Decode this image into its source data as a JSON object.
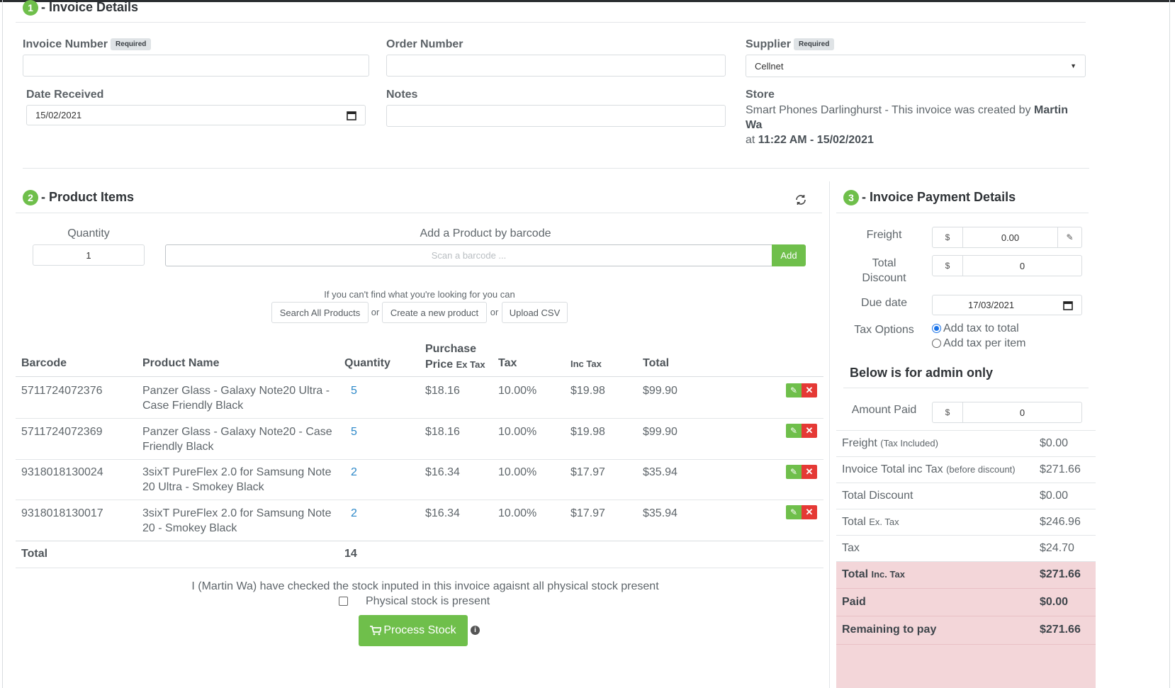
{
  "invoice_details": {
    "number": "1",
    "title": "- Invoice Details",
    "invoice_number": {
      "label": "Invoice Number",
      "badge": "Required",
      "value": ""
    },
    "order_number": {
      "label": "Order Number",
      "value": ""
    },
    "supplier": {
      "label": "Supplier",
      "badge": "Required",
      "value": "Cellnet"
    },
    "date_received": {
      "label": "Date Received",
      "value": "15/02/2021"
    },
    "notes": {
      "label": "Notes",
      "value": ""
    },
    "store": {
      "label": "Store",
      "text_pre": "Smart Phones Darlinghurst - This invoice was created by ",
      "creator": "Martin Wa",
      "text_at": "at ",
      "created": "11:22 AM - 15/02/2021"
    }
  },
  "product_items": {
    "number": "2",
    "title": "- Product Items",
    "refresh_icon": "refresh-icon",
    "quantity_label": "Quantity",
    "quantity_value": "1",
    "barcode_label": "Add a Product by barcode",
    "barcode_placeholder": "Scan a barcode ...",
    "add_button": "Add",
    "hint": "If you can't find what you're looking for you can",
    "search_all": "Search All Products",
    "or": "or",
    "create_new": "Create a new product",
    "upload_csv": "Upload CSV",
    "columns": {
      "barcode": "Barcode",
      "product_name": "Product Name",
      "quantity": "Quantity",
      "purchase_top": "Purchase",
      "purchase_price": "Price",
      "purchase_ex": "Ex Tax",
      "tax": "Tax",
      "inc_tax": "Inc Tax",
      "total": "Total"
    },
    "rows": [
      {
        "barcode": "5711724072376",
        "name_1": "Panzer Glass - Galaxy Note20 Ultra -",
        "name_2": "Case Friendly Black",
        "quantity": "5",
        "price": "$18.16",
        "tax": "10.00%",
        "inc_tax": "$19.98",
        "total": "$99.90"
      },
      {
        "barcode": "5711724072369",
        "name_1": "Panzer Glass - Galaxy Note20 - Case",
        "name_2": "Friendly Black",
        "quantity": "5",
        "price": "$18.16",
        "tax": "10.00%",
        "inc_tax": "$19.98",
        "total": "$99.90"
      },
      {
        "barcode": "9318018130024",
        "name_1": "3sixT PureFlex 2.0 for Samsung Note",
        "name_2": "20 Ultra - Smokey Black",
        "quantity": "2",
        "price": "$16.34",
        "tax": "10.00%",
        "inc_tax": "$17.97",
        "total": "$35.94"
      },
      {
        "barcode": "9318018130017",
        "name_1": "3sixT PureFlex 2.0 for Samsung Note",
        "name_2": "20 - Smokey Black",
        "quantity": "2",
        "price": "$16.34",
        "tax": "10.00%",
        "inc_tax": "$17.97",
        "total": "$35.94"
      }
    ],
    "total_label": "Total",
    "total_quantity": "14",
    "check_statement": "I (Martin Wa) have checked the stock inputed in this invoice agaisnt all physical stock present",
    "check_label": "Physical stock is present",
    "process_button": "Process Stock",
    "info_icon": "info-icon"
  },
  "payment": {
    "number": "3",
    "title": "- Invoice Payment Details",
    "freight": {
      "label": "Freight",
      "prefix": "$",
      "value": "0.00"
    },
    "total_discount": {
      "label_1": "Total",
      "label_2": "Discount",
      "prefix": "$",
      "value": "0"
    },
    "due_date": {
      "label": "Due date",
      "value": "17/03/2021"
    },
    "tax_options": {
      "label": "Tax Options",
      "opt_1": "Add tax to total",
      "opt_2": "Add tax per item"
    },
    "admin_title": "Below is for admin only",
    "amount_paid": {
      "label": "Amount Paid",
      "prefix": "$",
      "value": "0"
    },
    "summary": [
      {
        "label": "Freight",
        "small": "(Tax Included)",
        "value": "$0.00"
      },
      {
        "label": "Invoice Total inc Tax",
        "small": "(before discount)",
        "value": "$271.66"
      },
      {
        "label": "Total Discount",
        "small": "",
        "value": "$0.00"
      },
      {
        "label": "Total",
        "small": "Ex. Tax",
        "value": "$246.96"
      },
      {
        "label": "Tax",
        "small": "",
        "value": "$24.70"
      },
      {
        "label": "Total",
        "small": "Inc. Tax",
        "value": "$271.66"
      },
      {
        "label": "Paid",
        "small": "",
        "value": "$0.00"
      },
      {
        "label": "Remaining to pay",
        "small": "",
        "value": "$271.66"
      }
    ]
  },
  "colors": {
    "accent_green": "#6fbf4b",
    "danger_red": "#e53935",
    "link_blue": "#2a87c8",
    "highlight_pink": "#f3d6d9"
  }
}
